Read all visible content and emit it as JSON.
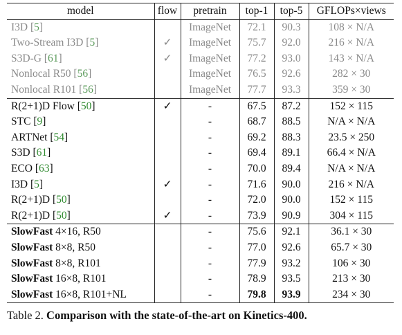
{
  "headers": [
    "model",
    "flow",
    "pretrain",
    "top-1",
    "top-5",
    "GFLOPs×views"
  ],
  "groups": [
    {
      "style": "grey",
      "rows": [
        {
          "model": "I3D",
          "cite": "5",
          "flow": "",
          "pretrain": "ImageNet",
          "top1": "72.1",
          "top5": "90.3",
          "gflops": "108 × N/A"
        },
        {
          "model": "Two-Stream I3D",
          "cite": "5",
          "flow": "✓",
          "pretrain": "ImageNet",
          "top1": "75.7",
          "top5": "92.0",
          "gflops": "216 × N/A"
        },
        {
          "model": "S3D-G",
          "cite": "61",
          "flow": "✓",
          "pretrain": "ImageNet",
          "top1": "77.2",
          "top5": "93.0",
          "gflops": "143 × N/A"
        },
        {
          "model": "Nonlocal R50",
          "cite": "56",
          "flow": "",
          "pretrain": "ImageNet",
          "top1": "76.5",
          "top5": "92.6",
          "gflops": "282 × 30"
        },
        {
          "model": "Nonlocal R101",
          "cite": "56",
          "flow": "",
          "pretrain": "ImageNet",
          "top1": "77.7",
          "top5": "93.3",
          "gflops": "359 × 30"
        }
      ]
    },
    {
      "style": "normal",
      "rows": [
        {
          "model": "R(2+1)D Flow",
          "cite": "50",
          "flow": "✓",
          "pretrain": "-",
          "top1": "67.5",
          "top5": "87.2",
          "gflops": "152 × 115"
        },
        {
          "model": "STC",
          "cite": "9",
          "flow": "",
          "pretrain": "-",
          "top1": "68.7",
          "top5": "88.5",
          "gflops": "N/A × N/A"
        },
        {
          "model": "ARTNet",
          "cite": "54",
          "flow": "",
          "pretrain": "-",
          "top1": "69.2",
          "top5": "88.3",
          "gflops": "23.5 × 250"
        },
        {
          "model": "S3D",
          "cite": "61",
          "flow": "",
          "pretrain": "-",
          "top1": "69.4",
          "top5": "89.1",
          "gflops": "66.4 × N/A"
        },
        {
          "model": "ECO",
          "cite": "63",
          "flow": "",
          "pretrain": "-",
          "top1": "70.0",
          "top5": "89.4",
          "gflops": "N/A × N/A"
        },
        {
          "model": "I3D",
          "cite": "5",
          "flow": "✓",
          "pretrain": "-",
          "top1": "71.6",
          "top5": "90.0",
          "gflops": "216 × N/A"
        },
        {
          "model": "R(2+1)D",
          "cite": "50",
          "flow": "",
          "pretrain": "-",
          "top1": "72.0",
          "top5": "90.0",
          "gflops": "152 × 115"
        },
        {
          "model": "R(2+1)D",
          "cite": "50",
          "flow": "✓",
          "pretrain": "-",
          "top1": "73.9",
          "top5": "90.9",
          "gflops": "304 × 115"
        }
      ]
    },
    {
      "style": "slowfast",
      "rows": [
        {
          "model_bold": "SlowFast",
          "model_rest": " 4×16, R50",
          "flow": "",
          "pretrain": "-",
          "top1": "75.6",
          "top5": "92.1",
          "gflops": "36.1 × 30"
        },
        {
          "model_bold": "SlowFast",
          "model_rest": " 8×8, R50",
          "flow": "",
          "pretrain": "-",
          "top1": "77.0",
          "top5": "92.6",
          "gflops": "65.7 × 30"
        },
        {
          "model_bold": "SlowFast",
          "model_rest": " 8×8, R101",
          "flow": "",
          "pretrain": "-",
          "top1": "77.9",
          "top5": "93.2",
          "gflops": "106 × 30"
        },
        {
          "model_bold": "SlowFast",
          "model_rest": " 16×8, R101",
          "flow": "",
          "pretrain": "-",
          "top1": "78.9",
          "top5": "93.5",
          "gflops": "213 × 30"
        },
        {
          "model_bold": "SlowFast",
          "model_rest": " 16×8, R101+NL",
          "flow": "",
          "pretrain": "-",
          "top1": "79.8",
          "top5": "93.9",
          "gflops": "234 × 30",
          "bold_scores": true
        }
      ]
    }
  ],
  "caption": {
    "prefix": "Table 2. ",
    "title": "Comparison with the state-of-the-art on Kinetics-400."
  }
}
